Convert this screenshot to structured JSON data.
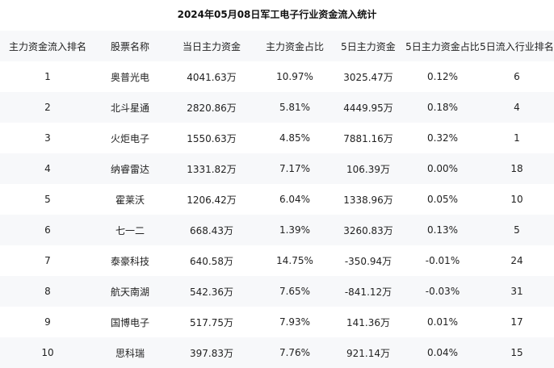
{
  "chart_data": {
    "type": "table",
    "title": "2024年05月08日军工电子行业资金流入统计",
    "columns": [
      "主力资金流入排名",
      "股票名称",
      "当日主力资金",
      "主力资金占比",
      "5日主力资金",
      "5日主力资金占比",
      "5日流入行业排名"
    ],
    "rows": [
      [
        "1",
        "奥普光电",
        "4041.63万",
        "10.97%",
        "3025.47万",
        "0.12%",
        "6"
      ],
      [
        "2",
        "北斗星通",
        "2820.86万",
        "5.81%",
        "4449.95万",
        "0.18%",
        "4"
      ],
      [
        "3",
        "火炬电子",
        "1550.63万",
        "4.85%",
        "7881.16万",
        "0.32%",
        "1"
      ],
      [
        "4",
        "纳睿雷达",
        "1331.82万",
        "7.17%",
        "106.39万",
        "0.00%",
        "18"
      ],
      [
        "5",
        "霍莱沃",
        "1206.42万",
        "6.04%",
        "1338.96万",
        "0.05%",
        "10"
      ],
      [
        "6",
        "七一二",
        "668.43万",
        "1.39%",
        "3260.83万",
        "0.13%",
        "5"
      ],
      [
        "7",
        "泰豪科技",
        "640.58万",
        "14.75%",
        "-350.94万",
        "-0.01%",
        "24"
      ],
      [
        "8",
        "航天南湖",
        "542.36万",
        "7.65%",
        "-841.12万",
        "-0.03%",
        "31"
      ],
      [
        "9",
        "国博电子",
        "517.75万",
        "7.93%",
        "141.36万",
        "0.01%",
        "17"
      ],
      [
        "10",
        "思科瑞",
        "397.83万",
        "7.76%",
        "921.14万",
        "0.04%",
        "15"
      ]
    ]
  },
  "colors": {
    "header_bg": "#f7f8fa",
    "stripe_bg": "#f7f8fa",
    "text": "#222222"
  }
}
